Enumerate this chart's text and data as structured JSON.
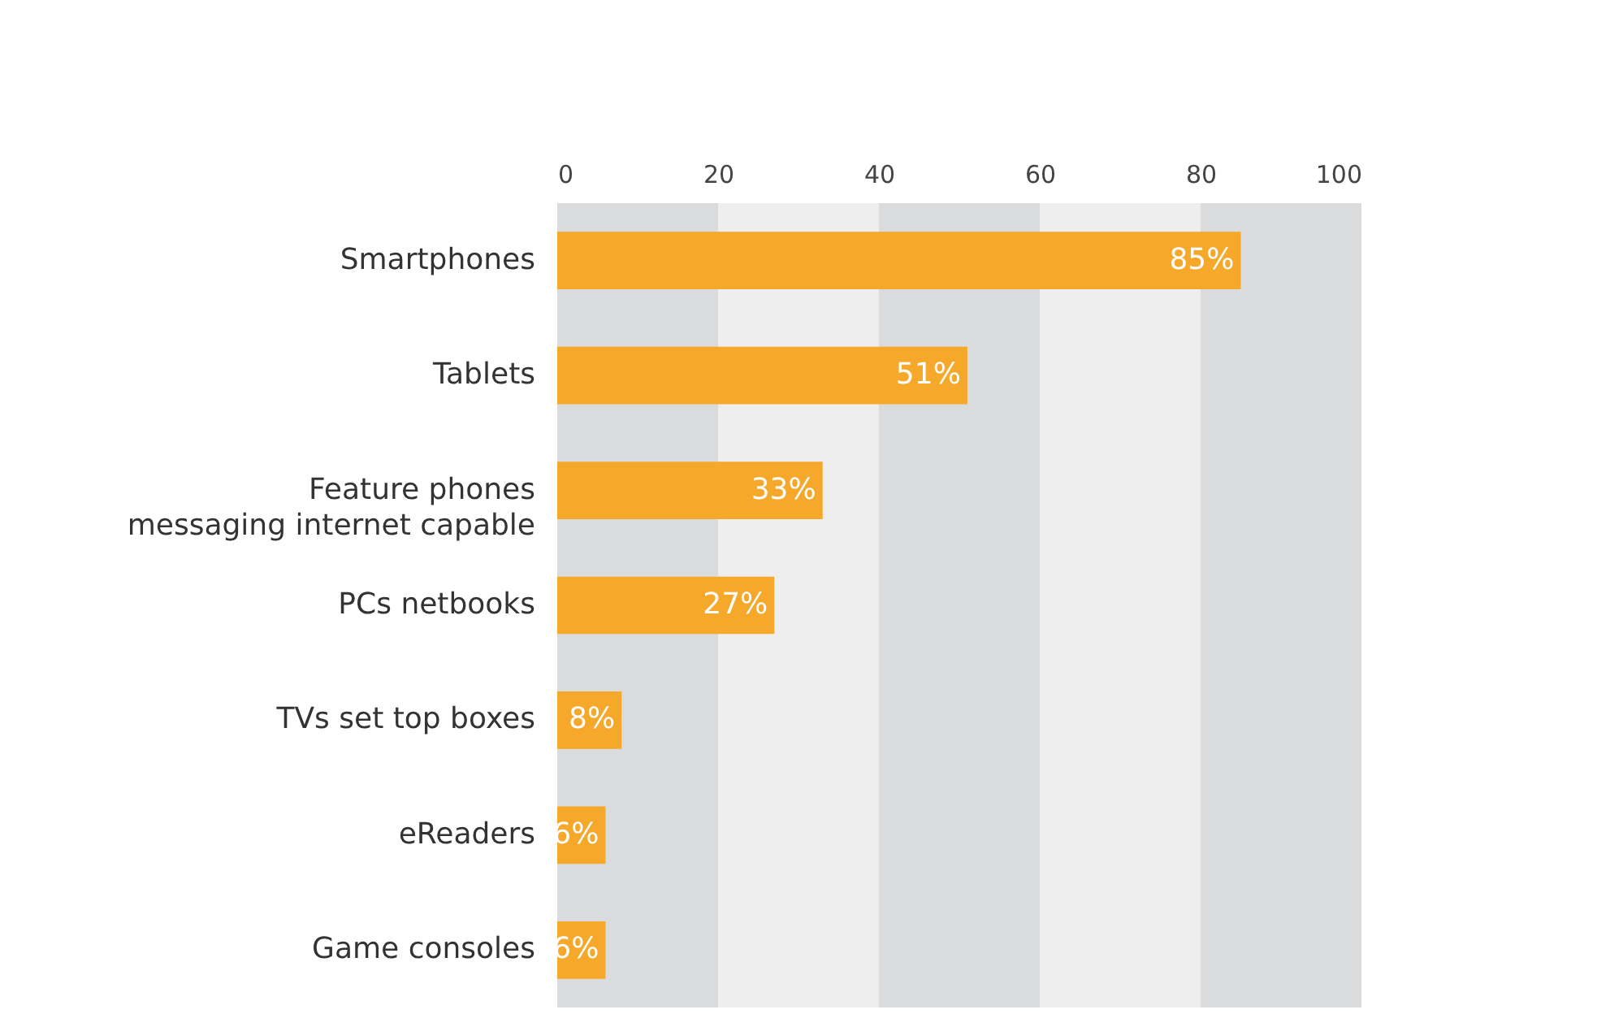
{
  "chart_data": {
    "type": "bar",
    "orientation": "horizontal",
    "categories": [
      "Smartphones",
      "Tablets",
      "Feature phones\nmessaging internet capable",
      "PCs netbooks",
      "TVs set top boxes",
      "eReaders",
      "Game consoles"
    ],
    "values": [
      85,
      51,
      33,
      27,
      8,
      6,
      6
    ],
    "value_labels": [
      "85%",
      "51%",
      "33%",
      "27%",
      "8%",
      "6%",
      "6%"
    ],
    "color": "#f5a82a",
    "xlim": [
      0,
      100
    ],
    "xticks": [
      0,
      20,
      40,
      60,
      80,
      100
    ],
    "grid": false,
    "bands": [
      {
        "axis": "x",
        "from": 0,
        "to": 20,
        "color": "#dadbdc"
      },
      {
        "axis": "x",
        "from": 20,
        "to": 40,
        "color": "#eeeeee"
      },
      {
        "axis": "x",
        "from": 40,
        "to": 60,
        "color": "#dadbdc"
      },
      {
        "axis": "x",
        "from": 60,
        "to": 80,
        "color": "#eeeeee"
      },
      {
        "axis": "x",
        "from": 80,
        "to": 100,
        "color": "#dadbdc"
      }
    ]
  }
}
